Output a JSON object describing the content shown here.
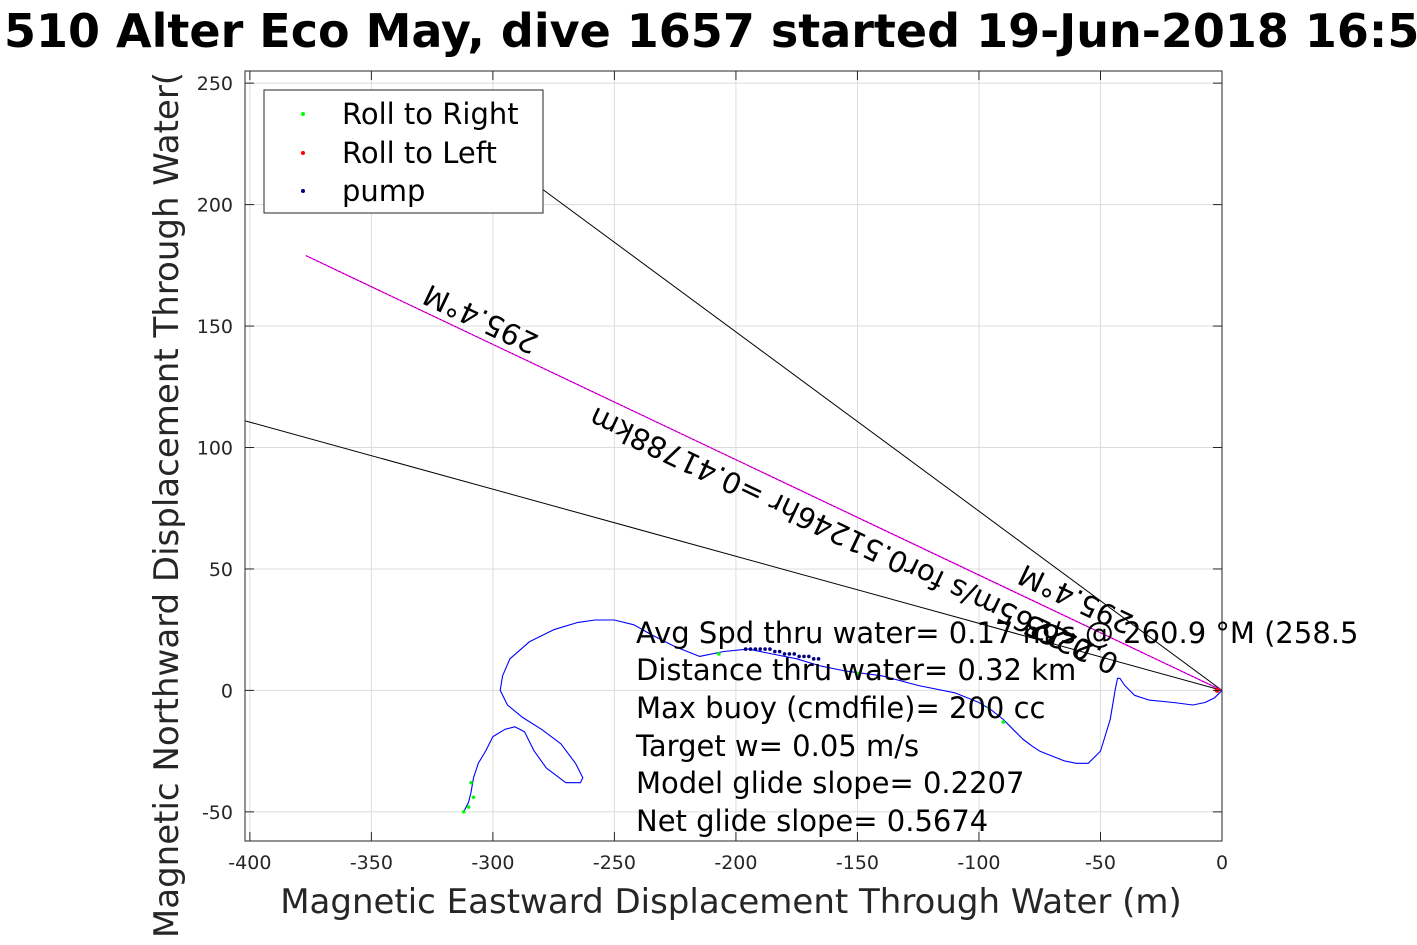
{
  "chart_data": {
    "type": "line",
    "title": "510 Alter Eco May, dive 1657 started 19-Jun-2018 16:5",
    "xlabel": "Magnetic Eastward Displacement Through Water (m)",
    "ylabel": "Magnetic Northward Displacement Through Water(",
    "xlim": [
      -402,
      0
    ],
    "ylim": [
      -62,
      255
    ],
    "xticks": [
      -400,
      -350,
      -300,
      -250,
      -200,
      -150,
      -100,
      -50,
      0
    ],
    "yticks": [
      -50,
      0,
      50,
      100,
      150,
      200,
      250
    ],
    "grid": true,
    "legend_position": "top-left",
    "legend": [
      {
        "name": "Roll to Right",
        "color": "#00ff00"
      },
      {
        "name": "Roll to Left",
        "color": "#ff0000"
      },
      {
        "name": "pump",
        "color": "#000080"
      }
    ],
    "colors": {
      "track": "#0000ff",
      "heading": "#ff00ff",
      "cone": "#000000",
      "roll_right": "#00ff00",
      "roll_left": "#ff0000",
      "pump": "#000080"
    },
    "track": {
      "x": [
        0,
        -1,
        -3,
        -7,
        -12,
        -20,
        -30,
        -36,
        -40,
        -42,
        -43,
        -44,
        -46,
        -50,
        -55,
        -60,
        -65,
        -70,
        -75,
        -78,
        -82,
        -86,
        -90,
        -95,
        -100,
        -110,
        -125,
        -140,
        -155,
        -165,
        -175,
        -185,
        -195,
        -205,
        -215,
        -225,
        -235,
        -242,
        -250,
        -258,
        -265,
        -275,
        -285,
        -293,
        -296,
        -297,
        -294,
        -288,
        -280,
        -272,
        -266,
        -263,
        -264,
        -270,
        -278,
        -283,
        -287,
        -291,
        -295,
        -300,
        -303,
        -306,
        -308,
        -309,
        -310,
        -312
      ],
      "y": [
        0,
        -1,
        -3,
        -5,
        -6,
        -5,
        -4,
        -2,
        2,
        5,
        5,
        0,
        -12,
        -25,
        -30,
        -30,
        -29,
        -27,
        -25,
        -23,
        -20,
        -16,
        -12,
        -8,
        -5,
        -1,
        2,
        6,
        8,
        10,
        13,
        15,
        17,
        16,
        14,
        18,
        23,
        27,
        29,
        29,
        28,
        25,
        20,
        13,
        6,
        0,
        -6,
        -11,
        -16,
        -22,
        -30,
        -36,
        -38,
        -38,
        -32,
        -25,
        -17,
        -15,
        -16,
        -19,
        -25,
        -30,
        -36,
        -42,
        -46,
        -50
      ]
    },
    "pump": {
      "x": [
        -196,
        -194,
        -192,
        -190,
        -188,
        -186,
        -184,
        -182,
        -180,
        -178,
        -176,
        -174,
        -172,
        -170,
        -168,
        -166
      ],
      "y": [
        17,
        17,
        17,
        17,
        17,
        17,
        16,
        16,
        15,
        15,
        15,
        14,
        14,
        14,
        13,
        13
      ]
    },
    "roll_right": {
      "x": [
        -207,
        -150,
        -96,
        -90,
        -309,
        -308,
        -310,
        -312
      ],
      "y": [
        15,
        7,
        -7,
        -13,
        -38,
        -44,
        -48,
        -50
      ]
    },
    "roll_left": {
      "x": [
        -2
      ],
      "y": [
        0
      ]
    },
    "heading_line": {
      "x": [
        0,
        -377
      ],
      "y": [
        0,
        179
      ]
    },
    "cone_lines": [
      {
        "x": [
          0,
          -402
        ],
        "y": [
          0,
          111
        ]
      },
      {
        "x": [
          0,
          -290
        ],
        "y": [
          0,
          214
        ]
      }
    ],
    "annotations": [
      {
        "text": "295.4°M"
      },
      {
        "text": "0.2265m/s for0.51246hr =0.41788km"
      },
      {
        "text": "295.4°M"
      },
      {
        "text": "0.2265"
      }
    ],
    "stats": [
      "Avg Spd thru water=  0.17 m/s @ 260.9 °M (258.5",
      "Distance thru water=  0.32 km",
      "Max buoy (cmdfile)= 200 cc",
      "Target w= 0.05 m/s",
      "Model glide slope= 0.2207",
      "Net glide slope= 0.5674"
    ]
  }
}
